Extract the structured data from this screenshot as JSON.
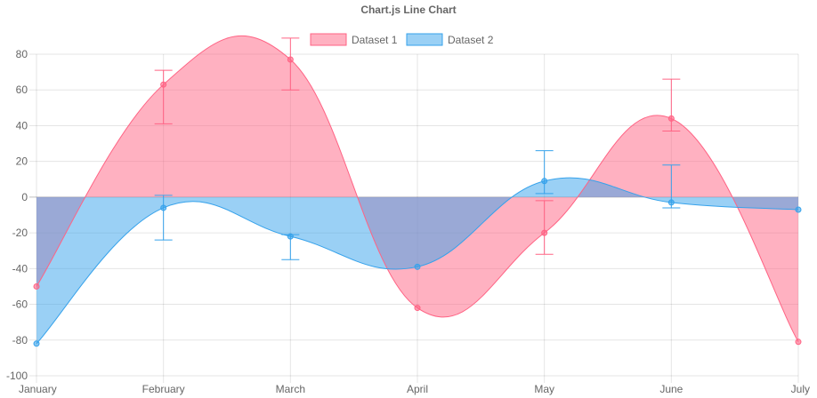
{
  "chart_data": {
    "type": "line",
    "title": "Chart.js Line Chart",
    "categories": [
      "January",
      "February",
      "March",
      "April",
      "May",
      "June",
      "July"
    ],
    "ylim": [
      -100,
      80
    ],
    "yticks": [
      80,
      60,
      40,
      20,
      0,
      -20,
      -40,
      -60,
      -80,
      -100
    ],
    "grid": true,
    "fill": "origin",
    "legend_position": "top",
    "series": [
      {
        "name": "Dataset 1",
        "color": "#ff6384",
        "fill_color": "#ff6384",
        "values": [
          -50,
          63,
          77,
          -62,
          -20,
          44,
          -81
        ],
        "error_low": [
          -50,
          41,
          60,
          -62,
          -32,
          37,
          -81
        ],
        "error_high": [
          -50,
          71,
          89,
          -62,
          -2,
          66,
          -81
        ]
      },
      {
        "name": "Dataset 2",
        "color": "#36a2eb",
        "fill_color": "#36a2eb",
        "values": [
          -82,
          -6,
          -22,
          -39,
          9,
          -3,
          -7
        ],
        "error_low": [
          -82,
          -24,
          -35,
          -39,
          2,
          -6,
          -7
        ],
        "error_high": [
          -82,
          1,
          -21,
          -39,
          26,
          18,
          -7
        ]
      }
    ]
  }
}
